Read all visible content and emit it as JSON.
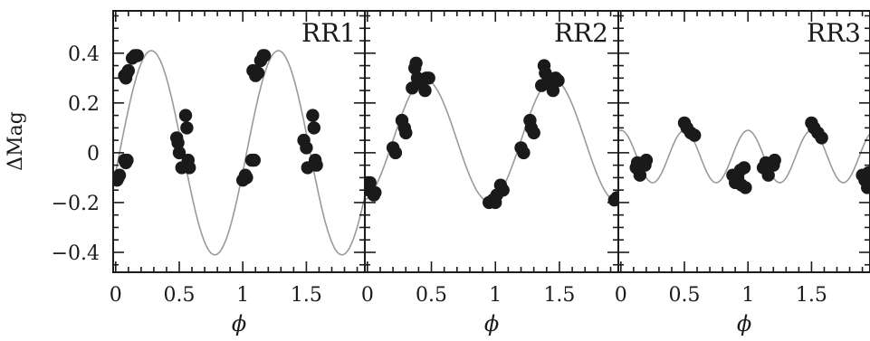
{
  "chart_data": {
    "type": "scatter",
    "ylabel": "ΔMag",
    "xlabel": "ϕ",
    "ylim": [
      -0.48,
      0.57
    ],
    "xlim": [
      -0.02,
      1.96
    ],
    "y_ticks": [
      -0.4,
      -0.2,
      0,
      0.2,
      0.4
    ],
    "y_tick_labels": [
      "−0.4",
      "−0.2",
      "0",
      "0.2",
      "0.4"
    ],
    "x_ticks": [
      0,
      0.5,
      1,
      1.5
    ],
    "x_tick_labels": [
      "0",
      "0.5",
      "1",
      "1.5"
    ],
    "grid": false,
    "panels": [
      {
        "label": "RR1",
        "model": {
          "amplitude": 0.41,
          "peak_phase": 0.28,
          "period": 1.0,
          "color": "#9a9a9a"
        },
        "points": [
          [
            0.02,
            -0.1
          ],
          [
            0.01,
            -0.11
          ],
          [
            0.03,
            -0.09
          ],
          [
            0.07,
            -0.03
          ],
          [
            0.09,
            -0.03
          ],
          [
            0.08,
            -0.04
          ],
          [
            0.07,
            0.31
          ],
          [
            0.08,
            0.3
          ],
          [
            0.1,
            0.33
          ],
          [
            0.09,
            0.32
          ],
          [
            0.13,
            0.38
          ],
          [
            0.15,
            0.39
          ],
          [
            0.17,
            0.39
          ],
          [
            0.48,
            0.06
          ],
          [
            0.49,
            0.04
          ],
          [
            0.5,
            0.0
          ],
          [
            0.52,
            -0.06
          ],
          [
            0.55,
            0.15
          ],
          [
            0.56,
            0.1
          ],
          [
            0.57,
            -0.03
          ],
          [
            0.58,
            -0.06
          ],
          [
            1.0,
            -0.11
          ],
          [
            1.02,
            -0.09
          ],
          [
            1.03,
            -0.1
          ],
          [
            1.07,
            -0.03
          ],
          [
            1.09,
            -0.03
          ],
          [
            1.08,
            0.33
          ],
          [
            1.1,
            0.31
          ],
          [
            1.12,
            0.32
          ],
          [
            1.14,
            0.37
          ],
          [
            1.16,
            0.39
          ],
          [
            1.17,
            0.39
          ],
          [
            1.48,
            0.05
          ],
          [
            1.5,
            0.02
          ],
          [
            1.51,
            -0.06
          ],
          [
            1.55,
            0.15
          ],
          [
            1.56,
            0.1
          ],
          [
            1.57,
            -0.03
          ],
          [
            1.58,
            -0.05
          ]
        ]
      },
      {
        "label": "RR2",
        "model": {
          "amplitude": 0.245,
          "offset": 0.05,
          "peak_phase": 0.45,
          "period": 1.0,
          "color": "#9a9a9a"
        },
        "points": [
          [
            0.0,
            -0.12
          ],
          [
            0.01,
            -0.15
          ],
          [
            0.02,
            -0.12
          ],
          [
            0.05,
            -0.17
          ],
          [
            0.06,
            -0.16
          ],
          [
            0.2,
            0.02
          ],
          [
            0.22,
            0.0
          ],
          [
            0.27,
            0.13
          ],
          [
            0.29,
            0.1
          ],
          [
            0.3,
            0.08
          ],
          [
            0.35,
            0.26
          ],
          [
            0.37,
            0.34
          ],
          [
            0.38,
            0.36
          ],
          [
            0.39,
            0.3
          ],
          [
            0.4,
            0.28
          ],
          [
            0.45,
            0.25
          ],
          [
            0.46,
            0.3
          ],
          [
            0.48,
            0.3
          ],
          [
            0.95,
            -0.2
          ],
          [
            0.98,
            -0.19
          ],
          [
            1.0,
            -0.2
          ],
          [
            1.01,
            -0.17
          ],
          [
            1.04,
            -0.13
          ],
          [
            1.06,
            -0.15
          ],
          [
            1.2,
            0.02
          ],
          [
            1.22,
            0.0
          ],
          [
            1.27,
            0.13
          ],
          [
            1.28,
            0.1
          ],
          [
            1.3,
            0.08
          ],
          [
            1.36,
            0.27
          ],
          [
            1.38,
            0.35
          ],
          [
            1.39,
            0.32
          ],
          [
            1.4,
            0.28
          ],
          [
            1.45,
            0.25
          ],
          [
            1.47,
            0.3
          ],
          [
            1.49,
            0.29
          ],
          [
            1.93,
            -0.19
          ],
          [
            1.95,
            -0.18
          ]
        ]
      },
      {
        "label": "RR3",
        "model": {
          "amplitude": 0.105,
          "offset": -0.015,
          "peak_phase": 0.5,
          "period": 0.5,
          "color": "#9a9a9a"
        },
        "points": [
          [
            0.12,
            -0.06
          ],
          [
            0.13,
            -0.04
          ],
          [
            0.15,
            -0.09
          ],
          [
            0.19,
            -0.05
          ],
          [
            0.2,
            -0.03
          ],
          [
            0.5,
            0.12
          ],
          [
            0.52,
            0.1
          ],
          [
            0.55,
            0.08
          ],
          [
            0.58,
            0.07
          ],
          [
            0.88,
            -0.09
          ],
          [
            0.9,
            -0.12
          ],
          [
            0.92,
            -0.1
          ],
          [
            0.94,
            -0.07
          ],
          [
            0.95,
            -0.13
          ],
          [
            0.97,
            -0.06
          ],
          [
            0.98,
            -0.14
          ],
          [
            1.12,
            -0.06
          ],
          [
            1.14,
            -0.04
          ],
          [
            1.16,
            -0.09
          ],
          [
            1.2,
            -0.05
          ],
          [
            1.21,
            -0.03
          ],
          [
            1.5,
            0.12
          ],
          [
            1.52,
            0.1
          ],
          [
            1.55,
            0.08
          ],
          [
            1.58,
            0.06
          ],
          [
            1.9,
            -0.09
          ],
          [
            1.92,
            -0.11
          ],
          [
            1.94,
            -0.14
          ],
          [
            1.95,
            -0.08
          ]
        ]
      }
    ]
  }
}
